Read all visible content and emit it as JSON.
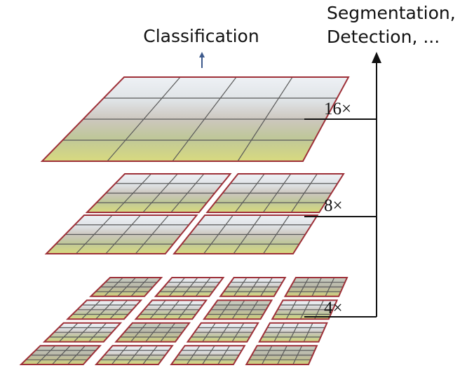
{
  "labels": {
    "classification": "Classification",
    "tasks_line1": "Segmentation,",
    "tasks_line2": "Detection, ...",
    "scale_16": "16×",
    "scale_8": "8×",
    "scale_4": "4×"
  },
  "colors": {
    "patch_border": "#9e3038",
    "grid_line": "#5a5a5a",
    "arrow_black": "#111111",
    "arrow_blue": "#3d5a8c",
    "sky": "#e9edf2",
    "foliage": "#b9c48f",
    "building": "#c8c2ba",
    "lawn": "#d5d77a"
  },
  "layers": [
    {
      "name": "stage-16x",
      "patches_per_row": 1,
      "grid_cells": 4
    },
    {
      "name": "stage-8x",
      "patches_per_row": 2,
      "grid_cells": 4
    },
    {
      "name": "stage-4x",
      "patches_per_row": 4,
      "grid_cells": 4
    }
  ]
}
